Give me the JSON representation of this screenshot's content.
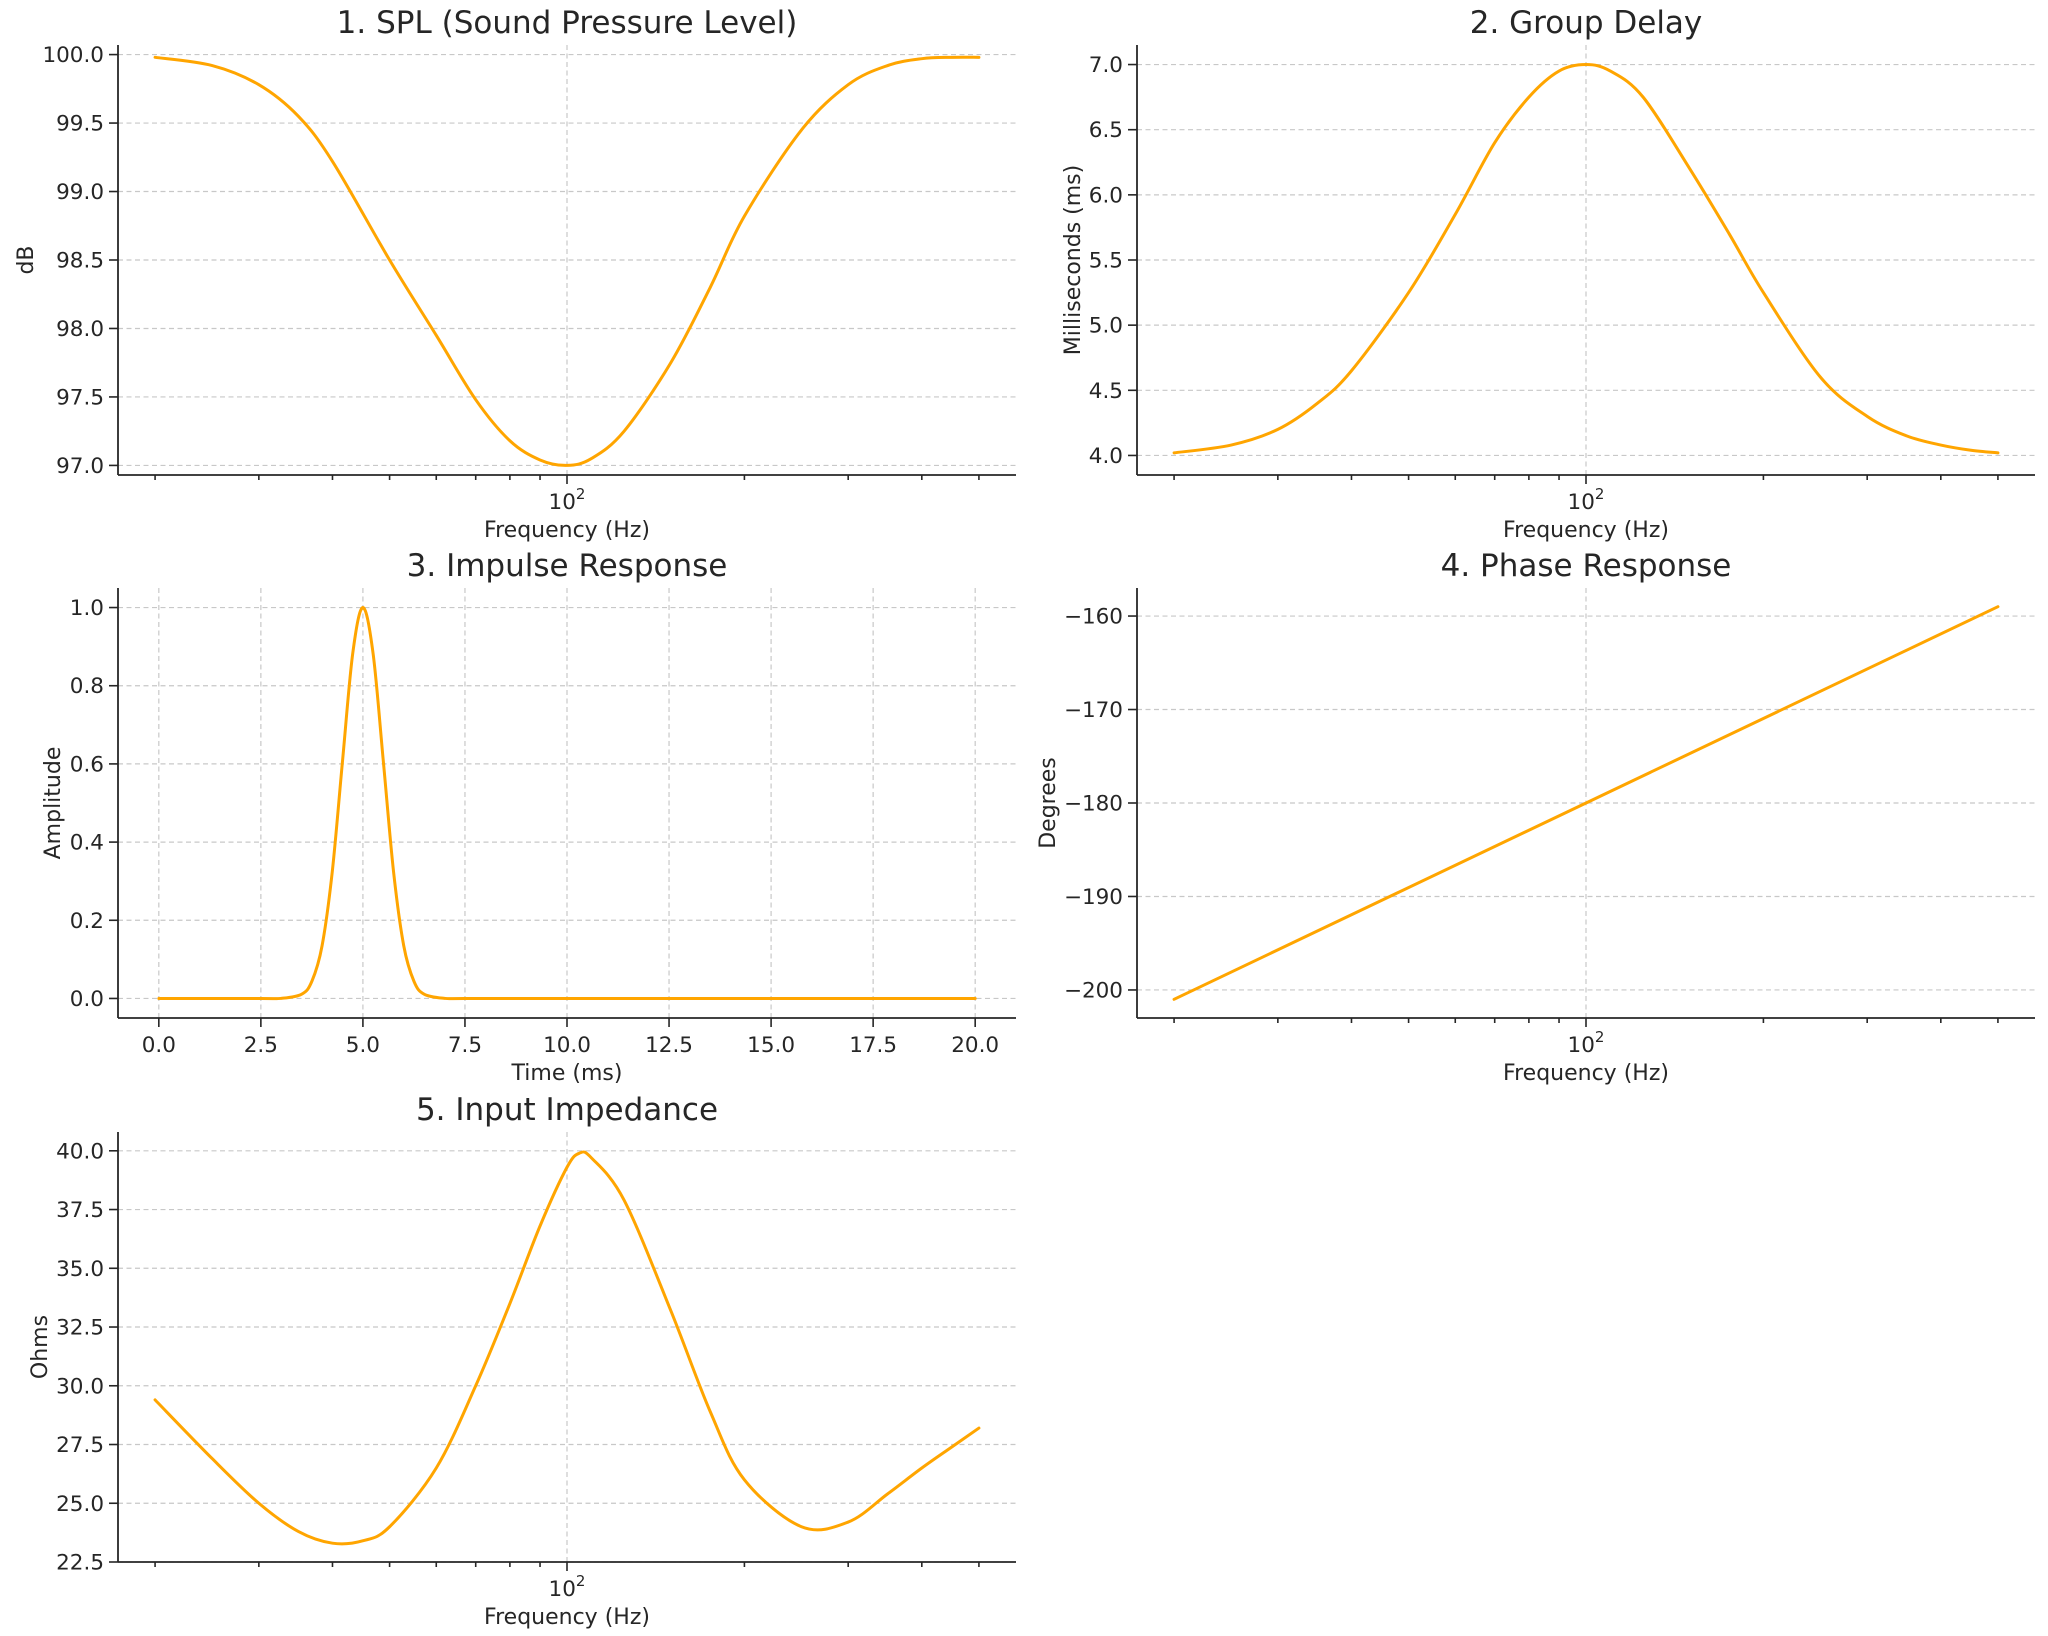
{
  "chart_data": [
    {
      "type": "line",
      "title": "1. SPL (Sound Pressure Level)",
      "xlabel": "Frequency (Hz)",
      "ylabel": "dB",
      "xscale": "log",
      "xlim": [
        20,
        500
      ],
      "ylim": [
        96.93,
        100.07
      ],
      "yticks": [
        97.0,
        97.5,
        98.0,
        98.5,
        99.0,
        99.5,
        100.0
      ],
      "ytick_labels": [
        "97.0",
        "97.5",
        "98.0",
        "98.5",
        "99.0",
        "99.5",
        "100.0"
      ],
      "xticks": [
        100
      ],
      "xtick_labels": [
        "10^2"
      ],
      "grid": true,
      "color": "#FFA500",
      "series": [
        {
          "x": [
            20,
            25,
            30,
            35,
            40,
            50,
            60,
            70,
            80,
            90,
            100,
            110,
            125,
            150,
            175,
            200,
            250,
            300,
            350,
            400,
            450,
            500
          ],
          "values": [
            99.98,
            99.92,
            99.78,
            99.55,
            99.22,
            98.5,
            97.95,
            97.48,
            97.18,
            97.04,
            97.0,
            97.05,
            97.25,
            97.75,
            98.3,
            98.82,
            99.45,
            99.78,
            99.92,
            99.97,
            99.98,
            99.98
          ]
        }
      ]
    },
    {
      "type": "line",
      "title": "2. Group Delay",
      "xlabel": "Frequency (Hz)",
      "ylabel": "Milliseconds (ms)",
      "xscale": "log",
      "xlim": [
        20,
        500
      ],
      "ylim": [
        3.85,
        7.15
      ],
      "yticks": [
        4.0,
        4.5,
        5.0,
        5.5,
        6.0,
        6.5,
        7.0
      ],
      "ytick_labels": [
        "4.0",
        "4.5",
        "5.0",
        "5.5",
        "6.0",
        "6.5",
        "7.0"
      ],
      "xticks": [
        100
      ],
      "xtick_labels": [
        "10^2"
      ],
      "grid": true,
      "color": "#FFA500",
      "series": [
        {
          "x": [
            20,
            25,
            30,
            35,
            40,
            50,
            60,
            70,
            80,
            90,
            100,
            110,
            125,
            150,
            175,
            200,
            250,
            300,
            350,
            400,
            450,
            500
          ],
          "values": [
            4.02,
            4.08,
            4.2,
            4.4,
            4.65,
            5.25,
            5.85,
            6.4,
            6.75,
            6.95,
            7.0,
            6.95,
            6.75,
            6.2,
            5.7,
            5.25,
            4.6,
            4.3,
            4.15,
            4.08,
            4.04,
            4.02
          ]
        }
      ]
    },
    {
      "type": "line",
      "title": "3. Impulse Response",
      "xlabel": "Time (ms)",
      "ylabel": "Amplitude",
      "xscale": "linear",
      "xlim": [
        -1.0,
        21.0
      ],
      "ylim": [
        -0.05,
        1.05
      ],
      "xticks": [
        0,
        2.5,
        5,
        7.5,
        10,
        12.5,
        15,
        17.5,
        20
      ],
      "xtick_labels": [
        "0.0",
        "2.5",
        "5.0",
        "7.5",
        "10.0",
        "12.5",
        "15.0",
        "17.5",
        "20.0"
      ],
      "yticks": [
        0,
        0.2,
        0.4,
        0.6,
        0.8,
        1.0
      ],
      "ytick_labels": [
        "0.0",
        "0.2",
        "0.4",
        "0.6",
        "0.8",
        "1.0"
      ],
      "grid": true,
      "color": "#FFA500",
      "series": [
        {
          "x": [
            0,
            2.5,
            3.0,
            3.5,
            3.75,
            4.0,
            4.25,
            4.5,
            4.75,
            5.0,
            5.25,
            5.5,
            5.75,
            6.0,
            6.25,
            6.5,
            7.0,
            7.5,
            10,
            12.5,
            15,
            17.5,
            20
          ],
          "values": [
            0,
            0,
            0.0003,
            0.011,
            0.044,
            0.135,
            0.325,
            0.607,
            0.882,
            1.0,
            0.882,
            0.607,
            0.325,
            0.135,
            0.044,
            0.011,
            0.0003,
            0,
            0,
            0,
            0,
            0,
            0
          ]
        }
      ]
    },
    {
      "type": "line",
      "title": "4. Phase Response",
      "xlabel": "Frequency (Hz)",
      "ylabel": "Degrees",
      "xscale": "log",
      "xlim": [
        20,
        500
      ],
      "ylim": [
        -203,
        -157
      ],
      "yticks": [
        -200,
        -190,
        -180,
        -170,
        -160
      ],
      "ytick_labels": [
        "−200",
        "−190",
        "−180",
        "−170",
        "−160"
      ],
      "xticks": [
        100
      ],
      "xtick_labels": [
        "10^2"
      ],
      "grid": true,
      "color": "#FFA500",
      "series": [
        {
          "x": [
            20,
            500
          ],
          "values": [
            -201,
            -159
          ]
        }
      ]
    },
    {
      "type": "line",
      "title": "5. Input Impedance",
      "xlabel": "Frequency (Hz)",
      "ylabel": "Ohms",
      "xscale": "log",
      "xlim": [
        20,
        500
      ],
      "ylim": [
        22.5,
        40.8
      ],
      "yticks": [
        22.5,
        25.0,
        27.5,
        30.0,
        32.5,
        35.0,
        37.5,
        40.0
      ],
      "ytick_labels": [
        "22.5",
        "25.0",
        "27.5",
        "30.0",
        "32.5",
        "35.0",
        "37.5",
        "40.0"
      ],
      "xticks": [
        100
      ],
      "xtick_labels": [
        "10^2"
      ],
      "grid": true,
      "color": "#FFA500",
      "series": [
        {
          "x": [
            20,
            25,
            30,
            35,
            40,
            45,
            50,
            60,
            70,
            80,
            90,
            100,
            105,
            110,
            125,
            150,
            175,
            200,
            250,
            300,
            350,
            400,
            450,
            500
          ],
          "values": [
            29.4,
            26.9,
            25.0,
            23.8,
            23.3,
            23.4,
            24.0,
            26.5,
            30.0,
            33.5,
            36.8,
            39.3,
            39.9,
            39.7,
            37.9,
            33.2,
            28.9,
            26.0,
            24.0,
            24.2,
            25.4,
            26.5,
            27.4,
            28.2
          ]
        }
      ]
    }
  ]
}
